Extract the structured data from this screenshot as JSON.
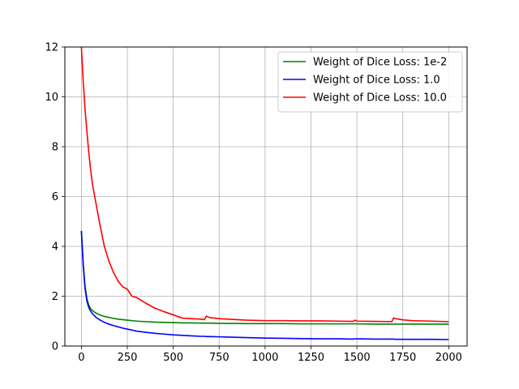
{
  "chart_data": {
    "type": "line",
    "title": "",
    "xlabel": "",
    "ylabel": "",
    "xlim": [
      -90,
      2100
    ],
    "ylim": [
      0,
      12
    ],
    "xticks": [
      0,
      250,
      500,
      750,
      1000,
      1250,
      1500,
      1750,
      2000
    ],
    "yticks": [
      0,
      2,
      4,
      6,
      8,
      10,
      12
    ],
    "grid": true,
    "legend_position": "top-right",
    "x": [
      0,
      10,
      20,
      30,
      40,
      50,
      60,
      80,
      100,
      125,
      150,
      175,
      200,
      225,
      250,
      275,
      300,
      350,
      400,
      450,
      500,
      550,
      600,
      650,
      670,
      680,
      700,
      750,
      800,
      900,
      1000,
      1100,
      1200,
      1300,
      1400,
      1480,
      1490,
      1500,
      1600,
      1690,
      1700,
      1710,
      1750,
      1800,
      1900,
      2000
    ],
    "series": [
      {
        "name": "Weight of Dice Loss: 1e-2",
        "color": "#008000",
        "values": [
          4.62,
          3.3,
          2.4,
          1.9,
          1.65,
          1.5,
          1.42,
          1.32,
          1.25,
          1.19,
          1.15,
          1.11,
          1.08,
          1.06,
          1.04,
          1.02,
          1.0,
          0.98,
          0.96,
          0.95,
          0.94,
          0.93,
          0.93,
          0.92,
          0.92,
          0.92,
          0.92,
          0.91,
          0.91,
          0.9,
          0.9,
          0.9,
          0.89,
          0.89,
          0.89,
          0.89,
          0.89,
          0.89,
          0.88,
          0.88,
          0.88,
          0.88,
          0.88,
          0.88,
          0.88,
          0.88
        ]
      },
      {
        "name": "Weight of Dice Loss: 1.0",
        "color": "#0000ff",
        "values": [
          4.62,
          3.2,
          2.3,
          1.8,
          1.55,
          1.4,
          1.3,
          1.15,
          1.05,
          0.95,
          0.88,
          0.82,
          0.77,
          0.72,
          0.68,
          0.64,
          0.6,
          0.55,
          0.51,
          0.48,
          0.45,
          0.43,
          0.41,
          0.39,
          0.39,
          0.38,
          0.38,
          0.37,
          0.36,
          0.34,
          0.32,
          0.31,
          0.3,
          0.29,
          0.29,
          0.28,
          0.29,
          0.29,
          0.28,
          0.28,
          0.28,
          0.27,
          0.27,
          0.27,
          0.27,
          0.26
        ]
      },
      {
        "name": "Weight of Dice Loss: 10.0",
        "color": "#ff0000",
        "values": [
          12.0,
          10.6,
          9.5,
          8.6,
          7.8,
          7.1,
          6.5,
          5.7,
          4.9,
          4.0,
          3.4,
          2.95,
          2.6,
          2.38,
          2.28,
          2.0,
          1.95,
          1.72,
          1.52,
          1.38,
          1.25,
          1.12,
          1.1,
          1.08,
          1.06,
          1.2,
          1.14,
          1.1,
          1.08,
          1.04,
          1.02,
          1.02,
          1.01,
          1.01,
          1.0,
          0.99,
          1.04,
          1.0,
          0.99,
          0.98,
          1.13,
          1.1,
          1.05,
          1.02,
          1.0,
          0.98
        ]
      }
    ]
  }
}
